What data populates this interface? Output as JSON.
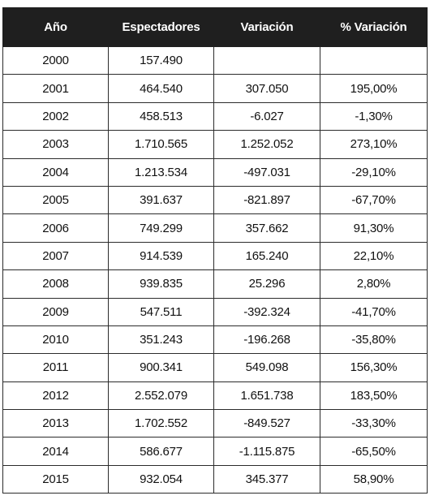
{
  "table": {
    "headers": [
      "Año",
      "Espectadores",
      "Variación",
      "% Variación"
    ],
    "rows": [
      [
        "2000",
        "157.490",
        "",
        ""
      ],
      [
        "2001",
        "464.540",
        "307.050",
        "195,00%"
      ],
      [
        "2002",
        "458.513",
        "-6.027",
        "-1,30%"
      ],
      [
        "2003",
        "1.710.565",
        "1.252.052",
        "273,10%"
      ],
      [
        "2004",
        "1.213.534",
        "-497.031",
        "-29,10%"
      ],
      [
        "2005",
        "391.637",
        "-821.897",
        "-67,70%"
      ],
      [
        "2006",
        "749.299",
        "357.662",
        "91,30%"
      ],
      [
        "2007",
        "914.539",
        "165.240",
        "22,10%"
      ],
      [
        "2008",
        "939.835",
        "25.296",
        "2,80%"
      ],
      [
        "2009",
        "547.511",
        "-392.324",
        "-41,70%"
      ],
      [
        "2010",
        "351.243",
        "-196.268",
        "-35,80%"
      ],
      [
        "2011",
        "900.341",
        "549.098",
        "156,30%"
      ],
      [
        "2012",
        "2.552.079",
        "1.651.738",
        "183,50%"
      ],
      [
        "2013",
        "1.702.552",
        "-849.527",
        "-33,30%"
      ],
      [
        "2014",
        "586.677",
        "-1.115.875",
        "-65,50%"
      ],
      [
        "2015",
        "932.054",
        "345.377",
        "58,90%"
      ]
    ]
  },
  "colors": {
    "header_bg": "#1f1f1f",
    "header_text": "#ffffff",
    "border": "#2b2b2b",
    "cell_text": "#111111"
  }
}
